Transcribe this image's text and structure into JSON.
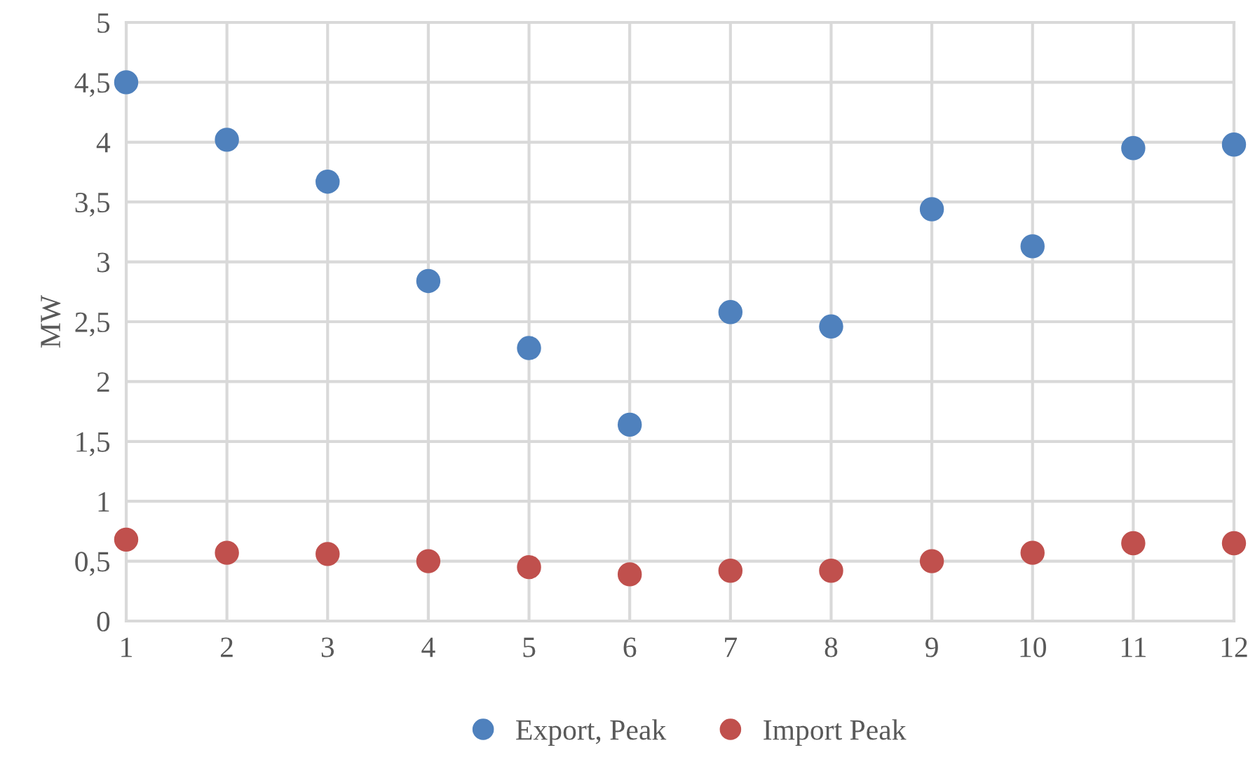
{
  "chart_data": {
    "type": "scatter",
    "ylabel": "MW",
    "x": [
      1,
      2,
      3,
      4,
      5,
      6,
      7,
      8,
      9,
      10,
      11,
      12
    ],
    "series": [
      {
        "name": "Export, Peak",
        "color": "#4f81bd",
        "values": [
          4.5,
          4.02,
          3.67,
          2.84,
          2.28,
          1.64,
          2.58,
          2.46,
          3.44,
          3.13,
          3.95,
          3.98
        ]
      },
      {
        "name": "Import Peak",
        "color": "#c0504d",
        "values": [
          0.68,
          0.57,
          0.56,
          0.5,
          0.45,
          0.39,
          0.42,
          0.42,
          0.5,
          0.57,
          0.65,
          0.65
        ]
      }
    ],
    "xlim": [
      1,
      12
    ],
    "xticks": [
      1,
      2,
      3,
      4,
      5,
      6,
      7,
      8,
      9,
      10,
      11,
      12
    ],
    "ylim": [
      0,
      5
    ],
    "yticks": [
      0,
      {
        "value": 0.5,
        "label": "0,5"
      },
      1,
      {
        "value": 1.5,
        "label": "1,5"
      },
      2,
      {
        "value": 2.5,
        "label": "2,5"
      },
      3,
      {
        "value": 3.5,
        "label": "3,5"
      },
      4,
      {
        "value": 4.5,
        "label": "4,5"
      },
      5
    ],
    "grid": true,
    "legend": "bottom",
    "marker": "circle"
  }
}
